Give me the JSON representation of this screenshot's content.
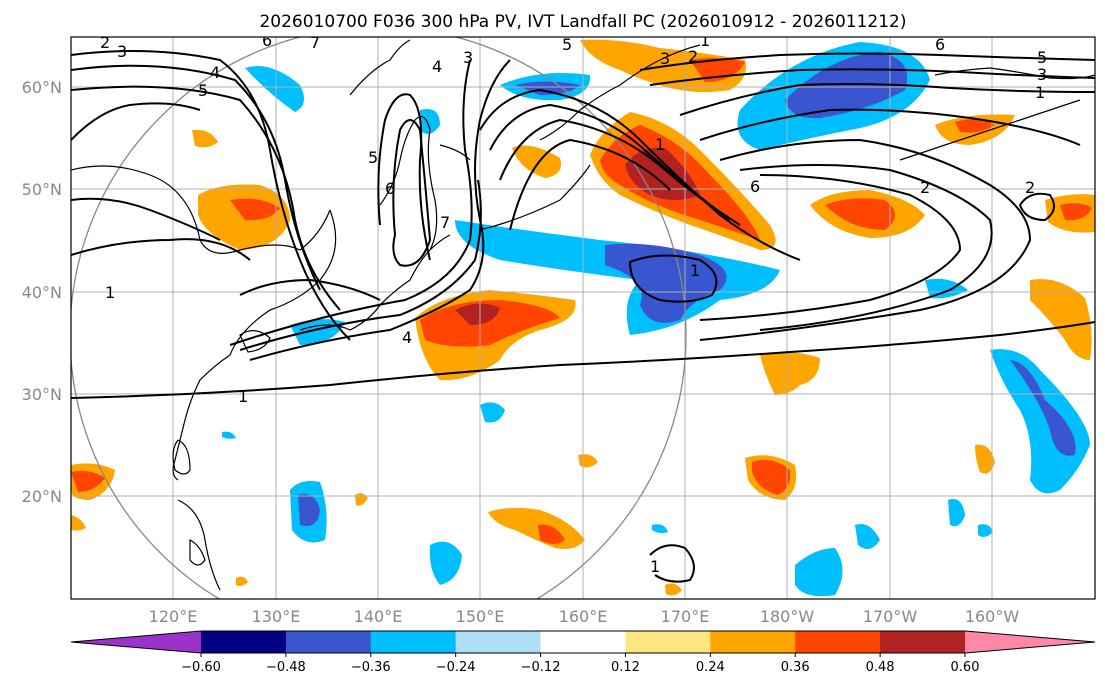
{
  "figure": {
    "title": "2026010700 F036 300 hPa PV, IVT Landfall PC (2026010912 - 2026011212)"
  },
  "axes": {
    "lat_labels": [
      "60°N",
      "50°N",
      "40°N",
      "30°N",
      "20°N"
    ],
    "lon_labels": [
      "120°E",
      "130°E",
      "140°E",
      "150°E",
      "160°E",
      "170°E",
      "180°W",
      "170°W",
      "160°W"
    ]
  },
  "colorbar": {
    "tick_labels": [
      "−0.60",
      "−0.48",
      "−0.36",
      "−0.24",
      "−0.12",
      "0.12",
      "0.24",
      "0.36",
      "0.48",
      "0.60"
    ],
    "colors": [
      "#9933cc",
      "#000080",
      "#3a55d0",
      "#00bfff",
      "#aedff7",
      "#ffffff",
      "#ffe680",
      "#ffa500",
      "#ff4500",
      "#b22222",
      "#ff88a8"
    ]
  },
  "contour_labels": [
    "2",
    "3",
    "4",
    "5",
    "6",
    "7",
    "1",
    "3",
    "2",
    "1",
    "6",
    "5",
    "3",
    "1",
    "5",
    "6",
    "7",
    "4",
    "3",
    "5",
    "6",
    "2",
    "2",
    "1",
    "1",
    "1",
    "4",
    "1"
  ],
  "chart_data": {
    "type": "heatmap",
    "title": "2026010700 F036 300 hPa PV, IVT Landfall PC (2026010912 - 2026011212)",
    "lon_range": [
      110,
      210
    ],
    "lat_range": [
      10,
      65
    ],
    "grid": true,
    "shading_levels": [
      -0.6,
      -0.48,
      -0.36,
      -0.24,
      -0.12,
      0.12,
      0.24,
      0.36,
      0.48,
      0.6
    ],
    "contour_levels": [
      1,
      2,
      3,
      4,
      5,
      6,
      7
    ]
  }
}
